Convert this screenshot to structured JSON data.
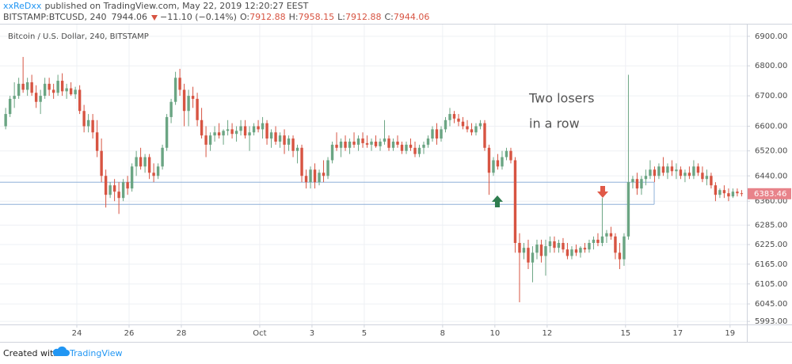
{
  "header": {
    "author": "xxReDxx",
    "published": "published on TradingView.com, May 22, 2019 12:20:27 EEST",
    "symbol": "BITSTAMP:BTCUSD, 240",
    "last": 7944.06,
    "change": "−11.10 (−0.14%)",
    "o_label": "O:",
    "open": 7912.88,
    "h_label": "H:",
    "high": 7958.15,
    "l_label": "L:",
    "low": 7912.88,
    "c_label": "C:",
    "close": 7944.06
  },
  "footer": {
    "created": "Created with",
    "brand": "TradingView"
  },
  "chart_data": {
    "type": "candlestick",
    "title": "Bitcoin / U.S. Dollar, 240, BITSTAMP",
    "log_scale": true,
    "grid": true,
    "up_color": "#6ba583",
    "down_color": "#d75442",
    "level_color": "#8fb0d8",
    "ylim": [
      5984,
      6943
    ],
    "yticks": [
      {
        "value": 6900,
        "label": "6900.00"
      },
      {
        "value": 6800,
        "label": "6800.00"
      },
      {
        "value": 6700,
        "label": "6700.00"
      },
      {
        "value": 6600,
        "label": "6600.00"
      },
      {
        "value": 6520,
        "label": "6520.00"
      },
      {
        "value": 6440,
        "label": "6440.00"
      },
      {
        "value": 6360,
        "label": "6360.00"
      },
      {
        "value": 6285,
        "label": "6285.00"
      },
      {
        "value": 6225,
        "label": "6225.00"
      },
      {
        "value": 6165,
        "label": "6165.00"
      },
      {
        "value": 6105,
        "label": "6105.00"
      },
      {
        "value": 6045,
        "label": "6045.00"
      },
      {
        "value": 5993,
        "label": "5993.00"
      }
    ],
    "xlim": [
      -1.3,
      170.2
    ],
    "xticks": [
      {
        "value": 16.34,
        "label": "24"
      },
      {
        "value": 28.34,
        "label": "26"
      },
      {
        "value": 40.34,
        "label": "28"
      },
      {
        "value": 58.34,
        "label": "Oct"
      },
      {
        "value": 70.34,
        "label": "3"
      },
      {
        "value": 82.34,
        "label": "5"
      },
      {
        "value": 100.34,
        "label": "8"
      },
      {
        "value": 112.34,
        "label": "10"
      },
      {
        "value": 124.34,
        "label": "12"
      },
      {
        "value": 142.34,
        "label": "15"
      },
      {
        "value": 154.34,
        "label": "17"
      },
      {
        "value": 166.34,
        "label": "19"
      }
    ],
    "levels": [
      6420,
      6350
    ],
    "annotations": [
      "Two losers",
      "in a row"
    ],
    "candles": [
      [
        6600,
        6660,
        6590,
        6640
      ],
      [
        6640,
        6700,
        6630,
        6690
      ],
      [
        6690,
        6745,
        6660,
        6700
      ],
      [
        6700,
        6760,
        6690,
        6740
      ],
      [
        6740,
        6830,
        6710,
        6720
      ],
      [
        6720,
        6760,
        6700,
        6745
      ],
      [
        6745,
        6770,
        6700,
        6710
      ],
      [
        6710,
        6735,
        6660,
        6680
      ],
      [
        6680,
        6720,
        6640,
        6700
      ],
      [
        6700,
        6760,
        6690,
        6740
      ],
      [
        6740,
        6760,
        6700,
        6720
      ],
      [
        6720,
        6740,
        6690,
        6710
      ],
      [
        6710,
        6770,
        6700,
        6750
      ],
      [
        6750,
        6775,
        6700,
        6715
      ],
      [
        6715,
        6740,
        6690,
        6725
      ],
      [
        6725,
        6745,
        6700,
        6705
      ],
      [
        6705,
        6730,
        6690,
        6720
      ],
      [
        6720,
        6735,
        6640,
        6650
      ],
      [
        6650,
        6670,
        6580,
        6600
      ],
      [
        6600,
        6640,
        6580,
        6620
      ],
      [
        6620,
        6640,
        6560,
        6580
      ],
      [
        6580,
        6620,
        6500,
        6520
      ],
      [
        6520,
        6560,
        6420,
        6440
      ],
      [
        6440,
        6460,
        6340,
        6380
      ],
      [
        6380,
        6420,
        6370,
        6410
      ],
      [
        6410,
        6430,
        6360,
        6390
      ],
      [
        6390,
        6420,
        6320,
        6370
      ],
      [
        6370,
        6430,
        6360,
        6420
      ],
      [
        6420,
        6440,
        6380,
        6400
      ],
      [
        6400,
        6480,
        6390,
        6470
      ],
      [
        6470,
        6520,
        6440,
        6500
      ],
      [
        6500,
        6530,
        6460,
        6470
      ],
      [
        6470,
        6510,
        6450,
        6500
      ],
      [
        6500,
        6510,
        6430,
        6450
      ],
      [
        6450,
        6480,
        6420,
        6440
      ],
      [
        6440,
        6480,
        6430,
        6470
      ],
      [
        6470,
        6540,
        6460,
        6530
      ],
      [
        6530,
        6640,
        6520,
        6630
      ],
      [
        6630,
        6690,
        6610,
        6680
      ],
      [
        6680,
        6780,
        6670,
        6760
      ],
      [
        6760,
        6790,
        6700,
        6720
      ],
      [
        6720,
        6740,
        6600,
        6650
      ],
      [
        6650,
        6720,
        6600,
        6700
      ],
      [
        6700,
        6730,
        6660,
        6690
      ],
      [
        6690,
        6710,
        6600,
        6620
      ],
      [
        6620,
        6660,
        6560,
        6570
      ],
      [
        6570,
        6600,
        6500,
        6540
      ],
      [
        6540,
        6580,
        6520,
        6570
      ],
      [
        6570,
        6600,
        6550,
        6580
      ],
      [
        6580,
        6610,
        6560,
        6570
      ],
      [
        6570,
        6590,
        6540,
        6585
      ],
      [
        6585,
        6620,
        6570,
        6590
      ],
      [
        6590,
        6610,
        6560,
        6575
      ],
      [
        6575,
        6600,
        6550,
        6585
      ],
      [
        6585,
        6620,
        6570,
        6600
      ],
      [
        6600,
        6620,
        6560,
        6570
      ],
      [
        6570,
        6600,
        6520,
        6580
      ],
      [
        6580,
        6610,
        6570,
        6600
      ],
      [
        6600,
        6620,
        6580,
        6590
      ],
      [
        6590,
        6630,
        6560,
        6610
      ],
      [
        6610,
        6620,
        6540,
        6560
      ],
      [
        6560,
        6590,
        6530,
        6580
      ],
      [
        6580,
        6600,
        6540,
        6550
      ],
      [
        6550,
        6580,
        6530,
        6570
      ],
      [
        6570,
        6590,
        6510,
        6540
      ],
      [
        6540,
        6570,
        6520,
        6560
      ],
      [
        6560,
        6570,
        6500,
        6520
      ],
      [
        6520,
        6540,
        6480,
        6530
      ],
      [
        6530,
        6540,
        6420,
        6440
      ],
      [
        6440,
        6460,
        6400,
        6420
      ],
      [
        6420,
        6470,
        6400,
        6460
      ],
      [
        6460,
        6480,
        6400,
        6420
      ],
      [
        6420,
        6460,
        6410,
        6450
      ],
      [
        6450,
        6490,
        6420,
        6440
      ],
      [
        6440,
        6500,
        6430,
        6490
      ],
      [
        6490,
        6550,
        6480,
        6540
      ],
      [
        6540,
        6580,
        6520,
        6530
      ],
      [
        6530,
        6560,
        6500,
        6550
      ],
      [
        6550,
        6570,
        6520,
        6530
      ],
      [
        6530,
        6560,
        6510,
        6550
      ],
      [
        6550,
        6580,
        6530,
        6540
      ],
      [
        6540,
        6570,
        6520,
        6560
      ],
      [
        6560,
        6580,
        6530,
        6545
      ],
      [
        6545,
        6570,
        6530,
        6540
      ],
      [
        6540,
        6560,
        6520,
        6550
      ],
      [
        6550,
        6570,
        6530,
        6535
      ],
      [
        6535,
        6560,
        6520,
        6550
      ],
      [
        6550,
        6620,
        6540,
        6560
      ],
      [
        6560,
        6570,
        6520,
        6530
      ],
      [
        6530,
        6560,
        6520,
        6550
      ],
      [
        6550,
        6570,
        6530,
        6540
      ],
      [
        6540,
        6550,
        6510,
        6520
      ],
      [
        6520,
        6550,
        6510,
        6540
      ],
      [
        6540,
        6560,
        6520,
        6530
      ],
      [
        6530,
        6550,
        6500,
        6510
      ],
      [
        6510,
        6540,
        6500,
        6530
      ],
      [
        6530,
        6550,
        6510,
        6540
      ],
      [
        6540,
        6570,
        6530,
        6560
      ],
      [
        6560,
        6600,
        6550,
        6590
      ],
      [
        6590,
        6610,
        6540,
        6560
      ],
      [
        6560,
        6600,
        6550,
        6590
      ],
      [
        6590,
        6630,
        6580,
        6620
      ],
      [
        6620,
        6660,
        6600,
        6640
      ],
      [
        6640,
        6650,
        6610,
        6625
      ],
      [
        6625,
        6640,
        6600,
        6615
      ],
      [
        6615,
        6630,
        6590,
        6600
      ],
      [
        6600,
        6620,
        6580,
        6590
      ],
      [
        6590,
        6610,
        6570,
        6580
      ],
      [
        6580,
        6610,
        6570,
        6600
      ],
      [
        6600,
        6620,
        6590,
        6610
      ],
      [
        6610,
        6620,
        6520,
        6530
      ],
      [
        6530,
        6540,
        6380,
        6450
      ],
      [
        6450,
        6500,
        6440,
        6490
      ],
      [
        6490,
        6510,
        6460,
        6470
      ],
      [
        6470,
        6520,
        6460,
        6500
      ],
      [
        6500,
        6530,
        6490,
        6520
      ],
      [
        6520,
        6530,
        6480,
        6490
      ],
      [
        6490,
        6500,
        6200,
        6230
      ],
      [
        6230,
        6260,
        6050,
        6200
      ],
      [
        6200,
        6230,
        6180,
        6215
      ],
      [
        6215,
        6240,
        6150,
        6170
      ],
      [
        6170,
        6220,
        6110,
        6200
      ],
      [
        6200,
        6240,
        6180,
        6225
      ],
      [
        6225,
        6240,
        6170,
        6190
      ],
      [
        6190,
        6240,
        6130,
        6220
      ],
      [
        6220,
        6250,
        6200,
        6235
      ],
      [
        6235,
        6250,
        6200,
        6215
      ],
      [
        6215,
        6240,
        6200,
        6230
      ],
      [
        6230,
        6245,
        6200,
        6210
      ],
      [
        6210,
        6230,
        6180,
        6190
      ],
      [
        6190,
        6220,
        6180,
        6210
      ],
      [
        6210,
        6225,
        6190,
        6200
      ],
      [
        6200,
        6220,
        6185,
        6215
      ],
      [
        6215,
        6230,
        6200,
        6210
      ],
      [
        6210,
        6240,
        6200,
        6230
      ],
      [
        6230,
        6250,
        6210,
        6240
      ],
      [
        6240,
        6260,
        6220,
        6230
      ],
      [
        6230,
        6370,
        6220,
        6250
      ],
      [
        6250,
        6270,
        6230,
        6260
      ],
      [
        6260,
        6280,
        6240,
        6250
      ],
      [
        6250,
        6260,
        6180,
        6200
      ],
      [
        6200,
        6230,
        6150,
        6180
      ],
      [
        6180,
        6260,
        6160,
        6250
      ],
      [
        6250,
        6770,
        6240,
        6420
      ],
      [
        6420,
        6440,
        6400,
        6430
      ],
      [
        6430,
        6450,
        6380,
        6400
      ],
      [
        6400,
        6440,
        6380,
        6430
      ],
      [
        6430,
        6460,
        6410,
        6440
      ],
      [
        6440,
        6490,
        6430,
        6460
      ],
      [
        6460,
        6470,
        6420,
        6440
      ],
      [
        6440,
        6480,
        6430,
        6470
      ],
      [
        6470,
        6500,
        6440,
        6450
      ],
      [
        6450,
        6480,
        6430,
        6470
      ],
      [
        6470,
        6490,
        6440,
        6455
      ],
      [
        6455,
        6480,
        6430,
        6460
      ],
      [
        6460,
        6470,
        6430,
        6440
      ],
      [
        6440,
        6460,
        6420,
        6450
      ],
      [
        6450,
        6470,
        6430,
        6440
      ],
      [
        6440,
        6490,
        6430,
        6470
      ],
      [
        6470,
        6480,
        6440,
        6450
      ],
      [
        6450,
        6470,
        6420,
        6430
      ],
      [
        6430,
        6460,
        6410,
        6440
      ],
      [
        6440,
        6450,
        6400,
        6410
      ],
      [
        6410,
        6420,
        6360,
        6380
      ],
      [
        6380,
        6400,
        6370,
        6395
      ],
      [
        6395,
        6410,
        6370,
        6385
      ],
      [
        6385,
        6400,
        6360,
        6375
      ],
      [
        6375,
        6400,
        6370,
        6390
      ],
      [
        6390,
        6400,
        6375,
        6385
      ],
      [
        6385,
        6395,
        6375,
        6383.46
      ]
    ]
  }
}
